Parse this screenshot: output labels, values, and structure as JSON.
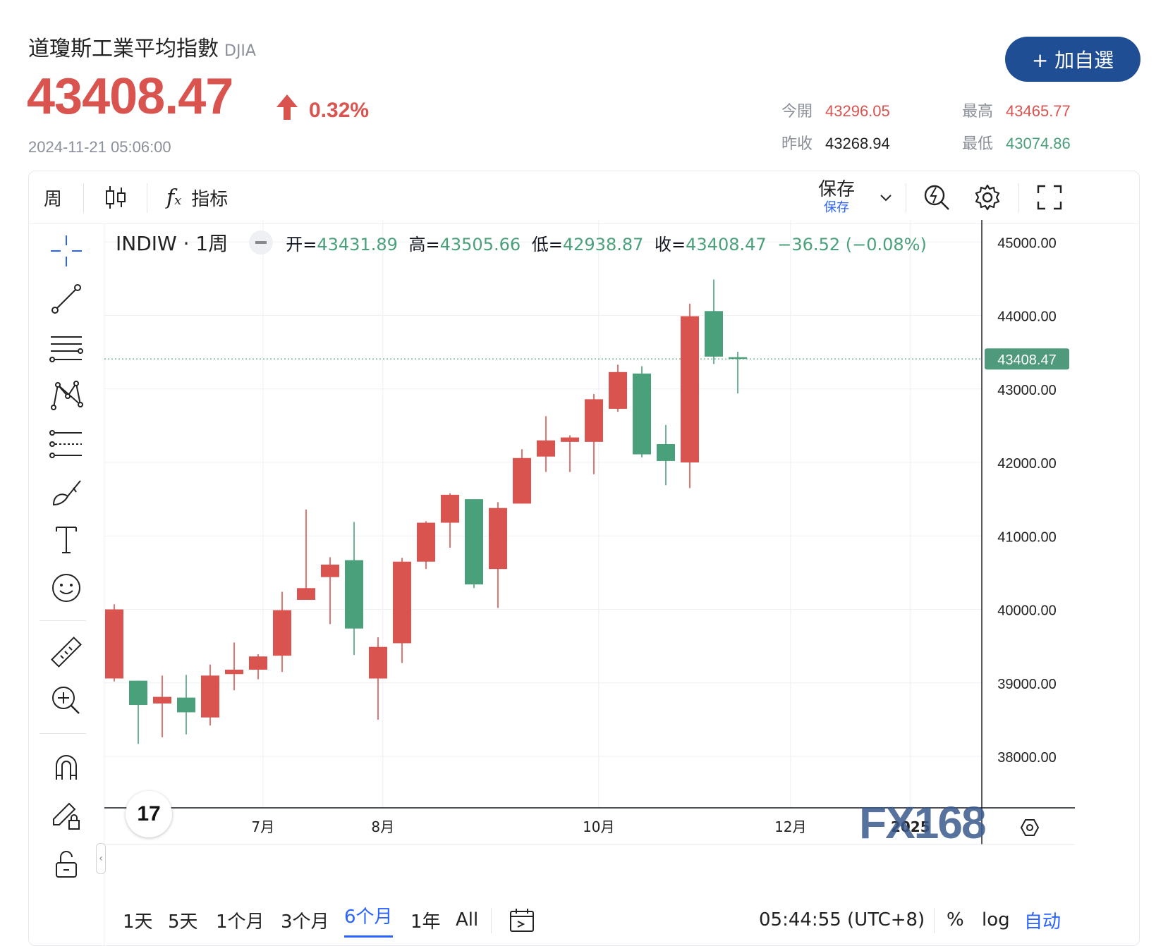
{
  "header": {
    "title": "道瓊斯工業平均指數",
    "symbol": "DJIA",
    "price": "43408.47",
    "change_pct": "0.32%",
    "timestamp": "2024-11-21 05:06:00",
    "add_button": "+ 加自選",
    "stats": {
      "open_label": "今開",
      "open_value": "43296.05",
      "high_label": "最高",
      "high_value": "43465.77",
      "prev_close_label": "昨收",
      "prev_close_value": "43268.94",
      "low_label": "最低",
      "low_value": "43074.86"
    },
    "colors": {
      "up": "#d9534f",
      "down": "#4aa07a",
      "accent": "#1f4e95"
    }
  },
  "toolbar": {
    "interval": "周",
    "indicators_label": "指标",
    "save_label": "保存",
    "save_sublabel": "保存"
  },
  "legend": {
    "symbol_interval": "INDIW · 1周",
    "open_label": "开=",
    "open": "43431.89",
    "high_label": "高=",
    "high": "43505.66",
    "low_label": "低=",
    "low": "42938.87",
    "close_label": "收=",
    "close": "43408.47",
    "change": "−36.52 (−0.08%)"
  },
  "bottom_bar": {
    "ranges": [
      "1天",
      "5天",
      "1个月",
      "3个月",
      "6个月",
      "1年",
      "All"
    ],
    "active_range": "6个月",
    "clock": "05:44:55 (UTC+8)",
    "percent": "%",
    "log": "log",
    "auto": "自动"
  },
  "watermark": "FX168",
  "tv_logo": "17",
  "chart_data": {
    "type": "candlestick",
    "y_ticks": [
      "45000.00",
      "44000.00",
      "43000.00",
      "42000.00",
      "41000.00",
      "40000.00",
      "39000.00",
      "38000.00"
    ],
    "ylim": [
      37300,
      45300
    ],
    "x_ticks": [
      "7月",
      "8月",
      "10月",
      "12月",
      "2025"
    ],
    "x_tick_index": [
      6.2,
      11.2,
      20.2,
      28.2,
      33.2
    ],
    "last_price": 43408.47,
    "last_price_label": "43408.47",
    "candles": [
      {
        "o": 39060,
        "h": 40070,
        "l": 39020,
        "c": 40000
      },
      {
        "o": 39030,
        "h": 39020,
        "l": 38170,
        "c": 38700
      },
      {
        "o": 38720,
        "h": 39100,
        "l": 38260,
        "c": 38810
      },
      {
        "o": 38800,
        "h": 39110,
        "l": 38300,
        "c": 38600
      },
      {
        "o": 38530,
        "h": 39250,
        "l": 38420,
        "c": 39100
      },
      {
        "o": 39120,
        "h": 39550,
        "l": 38900,
        "c": 39180
      },
      {
        "o": 39180,
        "h": 39390,
        "l": 39050,
        "c": 39360
      },
      {
        "o": 39370,
        "h": 40240,
        "l": 39150,
        "c": 39990
      },
      {
        "o": 40130,
        "h": 41360,
        "l": 40130,
        "c": 40290
      },
      {
        "o": 40440,
        "h": 40710,
        "l": 39800,
        "c": 40610
      },
      {
        "o": 40670,
        "h": 41190,
        "l": 39380,
        "c": 39740
      },
      {
        "o": 39060,
        "h": 39620,
        "l": 38500,
        "c": 39490
      },
      {
        "o": 39540,
        "h": 40700,
        "l": 39270,
        "c": 40650
      },
      {
        "o": 40650,
        "h": 41200,
        "l": 40550,
        "c": 41180
      },
      {
        "o": 41180,
        "h": 41580,
        "l": 40840,
        "c": 41560
      },
      {
        "o": 41500,
        "h": 41500,
        "l": 40290,
        "c": 40340
      },
      {
        "o": 40550,
        "h": 41460,
        "l": 40020,
        "c": 41380
      },
      {
        "o": 41440,
        "h": 42180,
        "l": 41440,
        "c": 42060
      },
      {
        "o": 42080,
        "h": 42630,
        "l": 41870,
        "c": 42300
      },
      {
        "o": 42280,
        "h": 42370,
        "l": 41870,
        "c": 42340
      },
      {
        "o": 42280,
        "h": 42930,
        "l": 41840,
        "c": 42860
      },
      {
        "o": 42730,
        "h": 43330,
        "l": 42690,
        "c": 43230
      },
      {
        "o": 43210,
        "h": 43310,
        "l": 42070,
        "c": 42110
      },
      {
        "o": 42250,
        "h": 42510,
        "l": 41690,
        "c": 42020
      },
      {
        "o": 42000,
        "h": 44160,
        "l": 41650,
        "c": 43990
      },
      {
        "o": 44060,
        "h": 44490,
        "l": 43340,
        "c": 43440
      },
      {
        "o": 43431.89,
        "h": 43505.66,
        "l": 42938.87,
        "c": 43408.47
      }
    ]
  }
}
